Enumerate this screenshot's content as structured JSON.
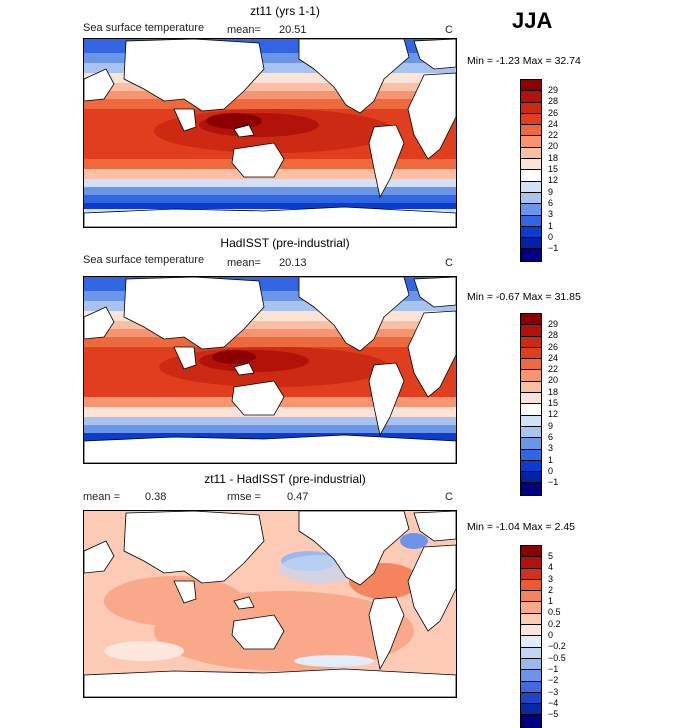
{
  "season": "JJA",
  "panels": [
    {
      "title": "zt11 (yrs 1-1)",
      "left_label": "Sea surface temperature",
      "mean_label": "mean=",
      "mean_value": "20.51",
      "rmse_label": "",
      "rmse_value": "",
      "units": "C",
      "min_label": "Min =",
      "min_value": "-1.23",
      "max_label": "Max =",
      "max_value": "32.74",
      "colorbar": {
        "ticks": [
          "29",
          "28",
          "26",
          "24",
          "22",
          "20",
          "18",
          "15",
          "12",
          "9",
          "6",
          "3",
          "1",
          "0",
          "−1"
        ],
        "colors": [
          "#8b0000",
          "#b3120b",
          "#cc2a12",
          "#e03e1c",
          "#ee6a3e",
          "#f79472",
          "#fbbfa3",
          "#fde3d6",
          "#ffffff",
          "#d2e1f7",
          "#a9c3f0",
          "#6b96e8",
          "#3265e2",
          "#0a3ccf",
          "#0022a6",
          "#000080"
        ]
      }
    },
    {
      "title": "HadISST (pre-industrial)",
      "left_label": "Sea surface temperature",
      "mean_label": "mean=",
      "mean_value": "20.13",
      "rmse_label": "",
      "rmse_value": "",
      "units": "C",
      "min_label": "Min =",
      "min_value": "-0.67",
      "max_label": "Max =",
      "max_value": "31.85",
      "colorbar": {
        "ticks": [
          "29",
          "28",
          "26",
          "24",
          "22",
          "20",
          "18",
          "15",
          "12",
          "9",
          "6",
          "3",
          "1",
          "0",
          "−1"
        ],
        "colors": [
          "#8b0000",
          "#b3120b",
          "#cc2a12",
          "#e03e1c",
          "#ee6a3e",
          "#f79472",
          "#fbbfa3",
          "#fde3d6",
          "#ffffff",
          "#d2e1f7",
          "#a9c3f0",
          "#6b96e8",
          "#3265e2",
          "#0a3ccf",
          "#0022a6",
          "#000080"
        ]
      }
    },
    {
      "title": "zt11 - HadISST (pre-industrial)",
      "left_label": "",
      "mean_label": "mean =",
      "mean_value": "0.38",
      "rmse_label": "rmse =",
      "rmse_value": "0.47",
      "units": "C",
      "min_label": "Min =",
      "min_value": "-1.04",
      "max_label": "Max =",
      "max_value": "2.45",
      "colorbar": {
        "ticks": [
          "5",
          "4",
          "3",
          "2",
          "1",
          "0.5",
          "0.2",
          "0",
          "−0.2",
          "−0.5",
          "−1",
          "−2",
          "−3",
          "−4",
          "−5"
        ],
        "colors": [
          "#8b0000",
          "#b3120b",
          "#d0311a",
          "#ec5a32",
          "#f5835e",
          "#f9a98a",
          "#fccab5",
          "#fde7dd",
          "#e3ecfa",
          "#c4d5f4",
          "#9bb8ee",
          "#6d94e6",
          "#3f6bde",
          "#1d45c6",
          "#0a28a2",
          "#000080"
        ]
      }
    }
  ]
}
